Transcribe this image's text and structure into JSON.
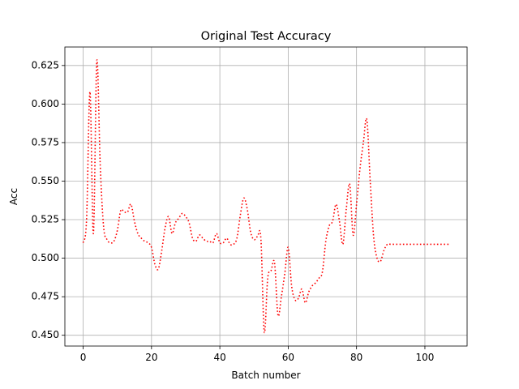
{
  "chart_data": {
    "type": "line",
    "title": "Original Test Accuracy",
    "xlabel": "Batch number",
    "ylabel": "Acc",
    "xlim": [
      -5.35,
      112.35
    ],
    "ylim": [
      0.443,
      0.637
    ],
    "grid": true,
    "x_ticks": [
      0,
      20,
      40,
      60,
      80,
      100
    ],
    "x_tick_labels": [
      "0",
      "20",
      "40",
      "60",
      "80",
      "100"
    ],
    "y_ticks": [
      0.45,
      0.475,
      0.5,
      0.525,
      0.55,
      0.575,
      0.6,
      0.625
    ],
    "y_tick_labels": [
      "0.450",
      "0.475",
      "0.500",
      "0.525",
      "0.550",
      "0.575",
      "0.600",
      "0.625"
    ],
    "series": [
      {
        "name": "accuracy",
        "color": "#ff0000",
        "line_style": "dotted",
        "x": [
          0,
          1,
          2,
          3,
          4,
          5,
          6,
          7,
          8,
          9,
          10,
          11,
          12,
          13,
          14,
          15,
          16,
          17,
          18,
          19,
          20,
          21,
          22,
          23,
          24,
          25,
          26,
          27,
          28,
          29,
          30,
          31,
          32,
          33,
          34,
          35,
          36,
          37,
          38,
          39,
          40,
          41,
          42,
          43,
          44,
          45,
          46,
          47,
          48,
          49,
          50,
          51,
          52,
          53,
          54,
          55,
          56,
          57,
          58,
          59,
          60,
          61,
          62,
          63,
          64,
          65,
          66,
          67,
          68,
          69,
          70,
          71,
          72,
          73,
          74,
          75,
          76,
          77,
          78,
          79,
          80,
          81,
          82,
          83,
          84,
          85,
          86,
          87,
          88,
          89,
          90,
          91,
          92,
          93,
          94,
          95,
          96,
          97,
          98,
          99,
          100,
          101,
          102,
          103,
          104,
          105,
          106,
          107
        ],
        "values": [
          0.51,
          0.525,
          0.608,
          0.516,
          0.628,
          0.56,
          0.52,
          0.512,
          0.51,
          0.511,
          0.518,
          0.531,
          0.53,
          0.53,
          0.535,
          0.524,
          0.516,
          0.513,
          0.511,
          0.51,
          0.507,
          0.496,
          0.493,
          0.505,
          0.52,
          0.527,
          0.516,
          0.523,
          0.526,
          0.529,
          0.527,
          0.523,
          0.513,
          0.511,
          0.515,
          0.513,
          0.511,
          0.511,
          0.51,
          0.516,
          0.51,
          0.51,
          0.513,
          0.509,
          0.509,
          0.513,
          0.528,
          0.539,
          0.532,
          0.517,
          0.512,
          0.514,
          0.513,
          0.452,
          0.487,
          0.492,
          0.497,
          0.463,
          0.475,
          0.49,
          0.507,
          0.482,
          0.473,
          0.474,
          0.48,
          0.471,
          0.478,
          0.482,
          0.484,
          0.487,
          0.491,
          0.511,
          0.521,
          0.524,
          0.535,
          0.524,
          0.509,
          0.532,
          0.548,
          0.515,
          0.535,
          0.558,
          0.575,
          0.59,
          0.55,
          0.514,
          0.5,
          0.498,
          0.505,
          0.509,
          0.509,
          0.509,
          0.509,
          0.509,
          0.509,
          0.509,
          0.509,
          0.509,
          0.509,
          0.509,
          0.509,
          0.509,
          0.509,
          0.509,
          0.509,
          0.509,
          0.509,
          0.509
        ]
      }
    ]
  }
}
